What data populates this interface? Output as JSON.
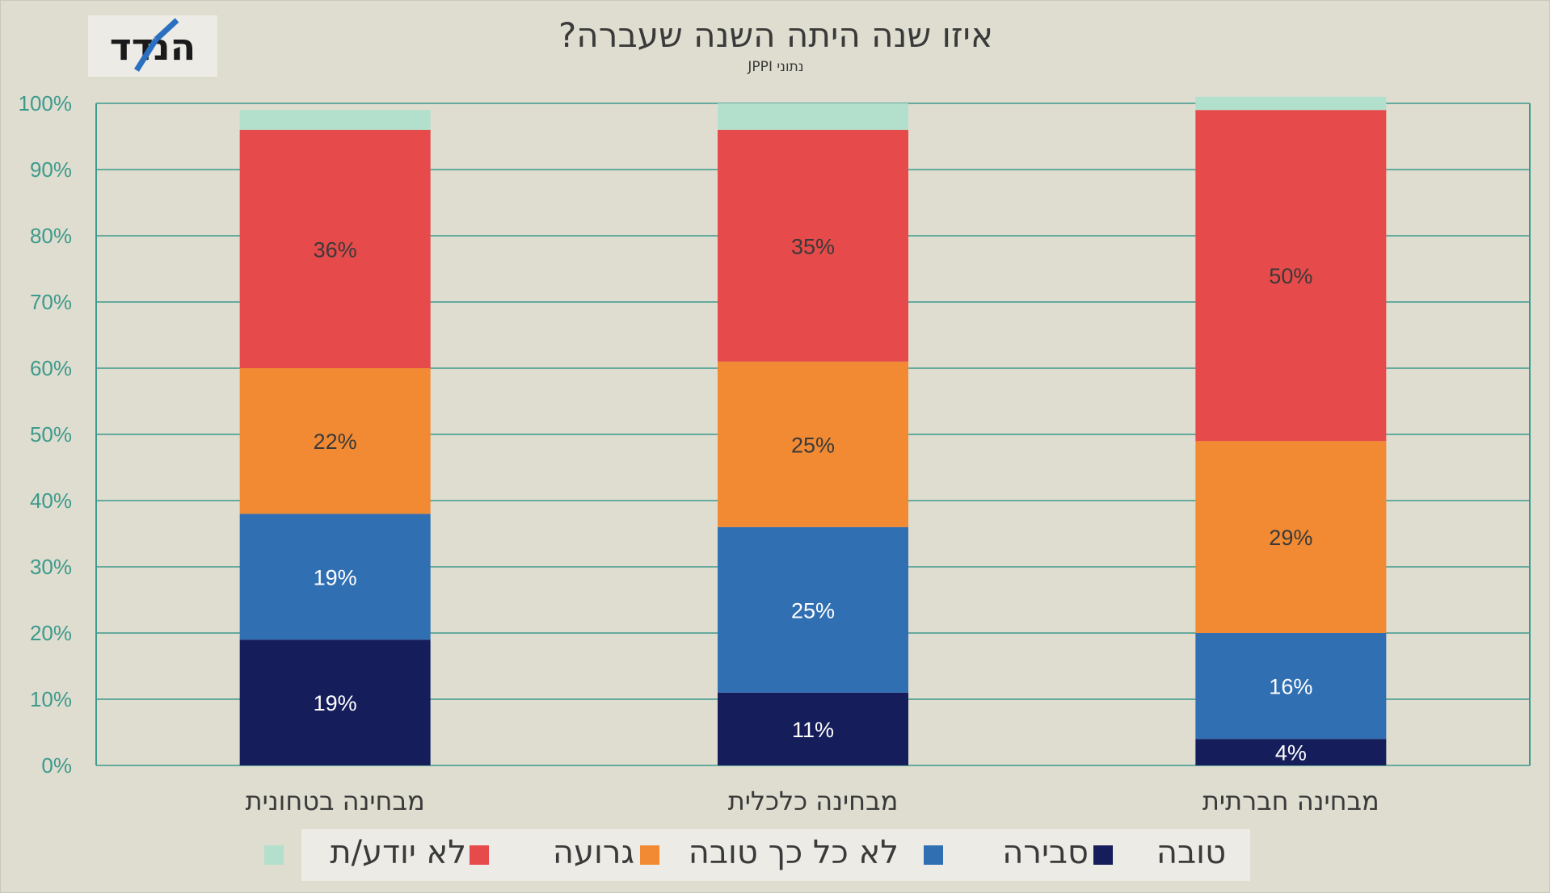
{
  "title": "איזו שנה היתה השנה שעברה?",
  "subtitle": "נתוני JPPI",
  "logo": {
    "text": "הנדד",
    "icon": "hamaded-logo"
  },
  "chart_data": {
    "type": "bar",
    "stacked": true,
    "percent_axis": true,
    "categories": [
      "מבחינה בטחונית",
      "מבחינה כלכלית",
      "מבחינה חברתית"
    ],
    "series": [
      {
        "name": "טובה",
        "values": [
          19,
          11,
          4
        ],
        "labels": [
          "19%",
          "11%",
          "4%"
        ],
        "color": "#151e5b",
        "label_color": "#ffffff"
      },
      {
        "name": "סבירה",
        "values": [
          19,
          25,
          16
        ],
        "labels": [
          "19%",
          "25%",
          "16%"
        ],
        "color": "#316fb3",
        "label_color": "#ffffff"
      },
      {
        "name": "לא כל כך טובה",
        "values": [
          22,
          25,
          29
        ],
        "labels": [
          "22%",
          "25%",
          "29%"
        ],
        "color": "#f28a33",
        "label_color": "#3a3a3a"
      },
      {
        "name": "גרועה",
        "values": [
          36,
          35,
          50
        ],
        "labels": [
          "36%",
          "35%",
          "50%"
        ],
        "color": "#e64a4a",
        "label_color": "#3a3a3a"
      },
      {
        "name": "לא יודע/ת",
        "values": [
          3,
          4,
          2
        ],
        "labels": [
          "",
          "",
          ""
        ],
        "color": "#b3e0cc",
        "label_color": "#3a3a3a"
      }
    ],
    "y_ticks": [
      "0%",
      "10%",
      "20%",
      "30%",
      "40%",
      "50%",
      "60%",
      "70%",
      "80%",
      "90%",
      "100%"
    ],
    "ylim": [
      0,
      100
    ],
    "grid": true,
    "grid_color": "#3e9a8c",
    "legend_position": "bottom"
  }
}
